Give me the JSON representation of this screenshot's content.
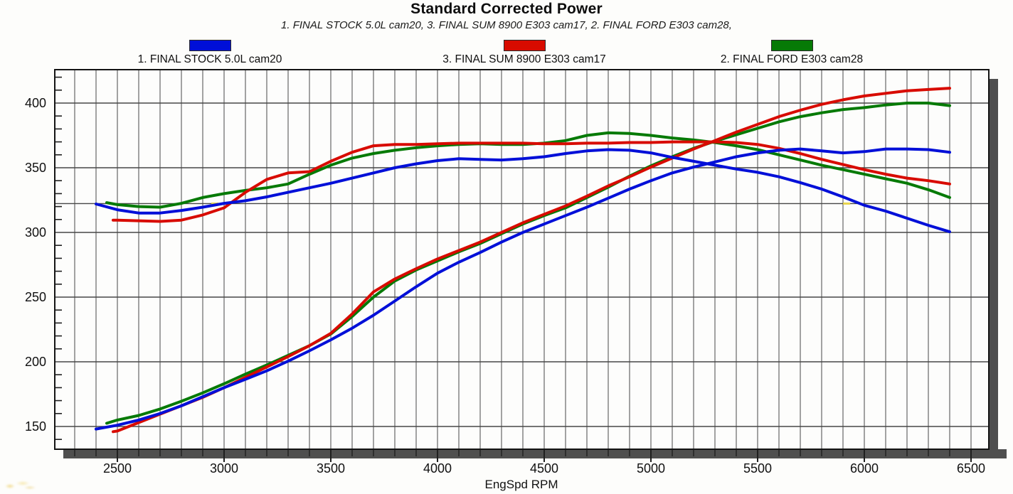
{
  "title": "Standard Corrected Power",
  "subtitle": "1. FINAL STOCK 5.0L cam20, 3. FINAL SUM 8900 E303 cam17, 2. FINAL FORD E303 cam28,",
  "legend": [
    {
      "label": "1. FINAL STOCK 5.0L cam20",
      "color": "#000fd8"
    },
    {
      "label": "3. FINAL SUM 8900 E303 cam17",
      "color": "#d80b00"
    },
    {
      "label": "2. FINAL FORD E303 cam28",
      "color": "#067a06"
    }
  ],
  "colors": {
    "grid": "#474747",
    "border": "#141414",
    "shadow": "#4f4f4f",
    "tick": "#1f1f1f",
    "text": "#111111",
    "plot_bg": "#fdfdfc",
    "highlight_dash": "#e8d44d"
  },
  "chart_data": {
    "type": "line",
    "title": "Standard Corrected Power",
    "subtitle": "1. FINAL STOCK 5.0L cam20, 3. FINAL SUM 8900 E303 cam17, 2. FINAL FORD E303 cam28,",
    "xlabel": "EngSpd RPM",
    "ylabel": "",
    "xlim": [
      2200,
      6590
    ],
    "ylim": [
      132,
      426
    ],
    "x_ticks": [
      2500,
      3000,
      3500,
      4000,
      4500,
      5000,
      5500,
      6000,
      6500
    ],
    "y_ticks": [
      150,
      200,
      250,
      300,
      350,
      400
    ],
    "x_minor_step": 100,
    "y_minor_step": 10,
    "grid": "on",
    "legend_position": "top",
    "reference_line_y": 322.3,
    "highlight_dashes": [
      {
        "rpm": 2957,
        "value": 322.3
      },
      {
        "rpm": 5917,
        "value": 322.3
      }
    ],
    "series": [
      {
        "name": "2. FINAL FORD E303 cam28 - torque",
        "legend": "2. FINAL FORD E303 cam28",
        "quantity": "torque",
        "color": "#067a06",
        "points": [
          [
            2450,
            323
          ],
          [
            2500,
            321.5
          ],
          [
            2600,
            320
          ],
          [
            2700,
            319.5
          ],
          [
            2800,
            322.5
          ],
          [
            2900,
            327
          ],
          [
            3000,
            330
          ],
          [
            3100,
            332.5
          ],
          [
            3200,
            334.5
          ],
          [
            3300,
            337.5
          ],
          [
            3400,
            345
          ],
          [
            3500,
            352
          ],
          [
            3600,
            357.5
          ],
          [
            3700,
            361
          ],
          [
            3800,
            363.5
          ],
          [
            3900,
            365.5
          ],
          [
            4000,
            367
          ],
          [
            4100,
            368
          ],
          [
            4200,
            368.5
          ],
          [
            4300,
            368
          ],
          [
            4400,
            368
          ],
          [
            4500,
            369
          ],
          [
            4600,
            371
          ],
          [
            4700,
            375
          ],
          [
            4800,
            377
          ],
          [
            4900,
            376.5
          ],
          [
            5000,
            375
          ],
          [
            5100,
            373
          ],
          [
            5200,
            371.5
          ],
          [
            5300,
            369.5
          ],
          [
            5400,
            367
          ],
          [
            5500,
            364
          ],
          [
            5600,
            360
          ],
          [
            5700,
            356
          ],
          [
            5800,
            352
          ],
          [
            5900,
            348.5
          ],
          [
            6000,
            345
          ],
          [
            6100,
            341.5
          ],
          [
            6200,
            338
          ],
          [
            6300,
            333
          ],
          [
            6400,
            327
          ]
        ]
      },
      {
        "name": "2. FINAL FORD E303 cam28 - power",
        "legend": "2. FINAL FORD E303 cam28",
        "quantity": "power",
        "color": "#067a06",
        "points": [
          [
            2450,
            152.5
          ],
          [
            2500,
            155
          ],
          [
            2600,
            158.5
          ],
          [
            2700,
            163.5
          ],
          [
            2800,
            169.5
          ],
          [
            2900,
            176
          ],
          [
            3000,
            183
          ],
          [
            3100,
            190.5
          ],
          [
            3200,
            197.5
          ],
          [
            3300,
            205
          ],
          [
            3400,
            212.5
          ],
          [
            3500,
            221.5
          ],
          [
            3600,
            235
          ],
          [
            3700,
            250
          ],
          [
            3800,
            262.5
          ],
          [
            3900,
            271
          ],
          [
            4000,
            278
          ],
          [
            4100,
            285
          ],
          [
            4200,
            291.5
          ],
          [
            4300,
            299
          ],
          [
            4400,
            306.5
          ],
          [
            4500,
            313
          ],
          [
            4600,
            319
          ],
          [
            4700,
            327
          ],
          [
            4800,
            335
          ],
          [
            4900,
            343.5
          ],
          [
            5000,
            351.5
          ],
          [
            5100,
            358.5
          ],
          [
            5200,
            365
          ],
          [
            5300,
            370.5
          ],
          [
            5400,
            375.5
          ],
          [
            5500,
            380.5
          ],
          [
            5600,
            385.5
          ],
          [
            5700,
            389.5
          ],
          [
            5800,
            392.5
          ],
          [
            5900,
            395
          ],
          [
            6000,
            396.5
          ],
          [
            6100,
            398.5
          ],
          [
            6200,
            400
          ],
          [
            6300,
            400
          ],
          [
            6400,
            398
          ]
        ]
      },
      {
        "name": "3. FINAL SUM 8900 E303 cam17 - torque",
        "legend": "3. FINAL SUM 8900 E303 cam17",
        "quantity": "torque",
        "color": "#d80b00",
        "points": [
          [
            2480,
            309.5
          ],
          [
            2500,
            309.5
          ],
          [
            2600,
            309
          ],
          [
            2700,
            308.5
          ],
          [
            2800,
            309.5
          ],
          [
            2900,
            313.5
          ],
          [
            3000,
            319
          ],
          [
            3100,
            331
          ],
          [
            3200,
            341
          ],
          [
            3300,
            346
          ],
          [
            3400,
            347
          ],
          [
            3500,
            355
          ],
          [
            3600,
            362
          ],
          [
            3700,
            367
          ],
          [
            3800,
            368
          ],
          [
            3900,
            368
          ],
          [
            4000,
            368.5
          ],
          [
            4100,
            369
          ],
          [
            4200,
            369
          ],
          [
            4300,
            369
          ],
          [
            4400,
            369
          ],
          [
            4500,
            368.5
          ],
          [
            4600,
            368.5
          ],
          [
            4700,
            369
          ],
          [
            4800,
            369
          ],
          [
            4900,
            369.5
          ],
          [
            5000,
            369.5
          ],
          [
            5100,
            370
          ],
          [
            5200,
            370
          ],
          [
            5300,
            370
          ],
          [
            5400,
            369.5
          ],
          [
            5500,
            368
          ],
          [
            5600,
            365
          ],
          [
            5700,
            361
          ],
          [
            5800,
            356.5
          ],
          [
            5900,
            352.5
          ],
          [
            6000,
            348.5
          ],
          [
            6100,
            345
          ],
          [
            6200,
            342
          ],
          [
            6300,
            340
          ],
          [
            6400,
            337.5
          ]
        ]
      },
      {
        "name": "3. FINAL SUM 8900 E303 cam17 - power",
        "legend": "3. FINAL SUM 8900 E303 cam17",
        "quantity": "power",
        "color": "#d80b00",
        "points": [
          [
            2480,
            146
          ],
          [
            2500,
            146.5
          ],
          [
            2600,
            153
          ],
          [
            2700,
            159.5
          ],
          [
            2800,
            166
          ],
          [
            2900,
            172.5
          ],
          [
            3000,
            180
          ],
          [
            3100,
            188
          ],
          [
            3200,
            196
          ],
          [
            3300,
            204
          ],
          [
            3400,
            212.5
          ],
          [
            3500,
            222
          ],
          [
            3600,
            237
          ],
          [
            3700,
            254
          ],
          [
            3800,
            264
          ],
          [
            3900,
            272
          ],
          [
            4000,
            279.5
          ],
          [
            4100,
            286
          ],
          [
            4200,
            292.5
          ],
          [
            4300,
            300
          ],
          [
            4400,
            307.5
          ],
          [
            4500,
            314
          ],
          [
            4600,
            320.5
          ],
          [
            4700,
            328
          ],
          [
            4800,
            336
          ],
          [
            4900,
            343
          ],
          [
            5000,
            350.5
          ],
          [
            5100,
            357.5
          ],
          [
            5200,
            364.5
          ],
          [
            5300,
            371
          ],
          [
            5400,
            377.5
          ],
          [
            5500,
            383.5
          ],
          [
            5600,
            389.5
          ],
          [
            5700,
            394.5
          ],
          [
            5800,
            399
          ],
          [
            5900,
            402.5
          ],
          [
            6000,
            405.5
          ],
          [
            6100,
            407.5
          ],
          [
            6200,
            409.5
          ],
          [
            6300,
            410.5
          ],
          [
            6400,
            411.5
          ]
        ]
      },
      {
        "name": "1. FINAL STOCK 5.0L cam20 - torque",
        "legend": "1. FINAL STOCK 5.0L cam20",
        "quantity": "torque",
        "color": "#000fd8",
        "points": [
          [
            2400,
            322
          ],
          [
            2500,
            317.5
          ],
          [
            2600,
            315
          ],
          [
            2700,
            315
          ],
          [
            2800,
            317
          ],
          [
            2900,
            319.5
          ],
          [
            3000,
            322.5
          ],
          [
            3100,
            324.5
          ],
          [
            3200,
            327.5
          ],
          [
            3300,
            331
          ],
          [
            3400,
            334.5
          ],
          [
            3500,
            338
          ],
          [
            3600,
            342
          ],
          [
            3700,
            346
          ],
          [
            3800,
            350
          ],
          [
            3900,
            353
          ],
          [
            4000,
            355.5
          ],
          [
            4100,
            357
          ],
          [
            4200,
            356.5
          ],
          [
            4300,
            356
          ],
          [
            4400,
            357
          ],
          [
            4500,
            358.5
          ],
          [
            4600,
            361
          ],
          [
            4700,
            363
          ],
          [
            4800,
            364
          ],
          [
            4900,
            363.5
          ],
          [
            5000,
            361.5
          ],
          [
            5100,
            358
          ],
          [
            5200,
            355
          ],
          [
            5300,
            352
          ],
          [
            5400,
            349
          ],
          [
            5500,
            346.5
          ],
          [
            5600,
            343
          ],
          [
            5700,
            338.5
          ],
          [
            5800,
            333.5
          ],
          [
            5900,
            327.5
          ],
          [
            6000,
            321
          ],
          [
            6100,
            316.5
          ],
          [
            6200,
            311
          ],
          [
            6300,
            305.5
          ],
          [
            6400,
            300.5
          ]
        ]
      },
      {
        "name": "1. FINAL STOCK 5.0L cam20 - power",
        "legend": "1. FINAL STOCK 5.0L cam20",
        "quantity": "power",
        "color": "#000fd8",
        "points": [
          [
            2400,
            148
          ],
          [
            2500,
            151
          ],
          [
            2600,
            155
          ],
          [
            2700,
            160
          ],
          [
            2800,
            166
          ],
          [
            2900,
            173
          ],
          [
            3000,
            180
          ],
          [
            3100,
            186.5
          ],
          [
            3200,
            193
          ],
          [
            3300,
            200.5
          ],
          [
            3400,
            208.5
          ],
          [
            3500,
            217
          ],
          [
            3600,
            226
          ],
          [
            3700,
            236
          ],
          [
            3800,
            247
          ],
          [
            3900,
            258
          ],
          [
            4000,
            268.5
          ],
          [
            4100,
            277
          ],
          [
            4200,
            284.5
          ],
          [
            4300,
            292.5
          ],
          [
            4400,
            300
          ],
          [
            4500,
            306.5
          ],
          [
            4600,
            313
          ],
          [
            4700,
            319.5
          ],
          [
            4800,
            326.5
          ],
          [
            4900,
            333.5
          ],
          [
            5000,
            340
          ],
          [
            5100,
            346
          ],
          [
            5200,
            350.5
          ],
          [
            5300,
            354.5
          ],
          [
            5400,
            358.5
          ],
          [
            5500,
            361.5
          ],
          [
            5600,
            363.5
          ],
          [
            5700,
            364.5
          ],
          [
            5800,
            363
          ],
          [
            5900,
            361.5
          ],
          [
            6000,
            362.5
          ],
          [
            6100,
            364.5
          ],
          [
            6200,
            364.5
          ],
          [
            6300,
            364
          ],
          [
            6400,
            362
          ]
        ]
      }
    ]
  }
}
